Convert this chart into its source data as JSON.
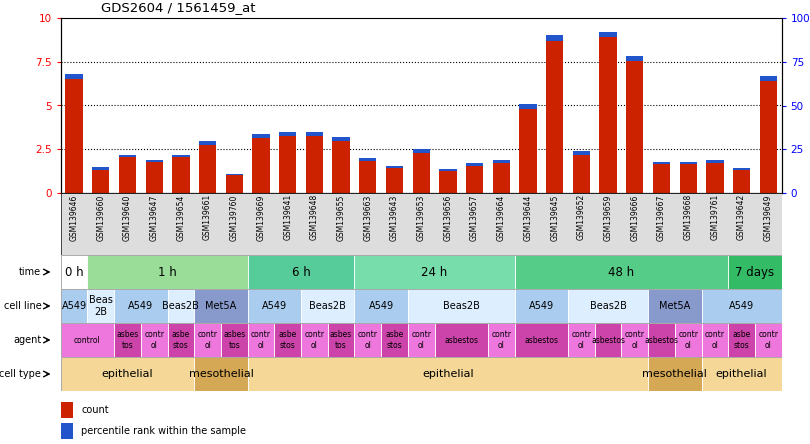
{
  "title": "GDS2604 / 1561459_at",
  "samples": [
    "GSM139646",
    "GSM139660",
    "GSM139640",
    "GSM139647",
    "GSM139654",
    "GSM139661",
    "GSM139760",
    "GSM139669",
    "GSM139641",
    "GSM139648",
    "GSM139655",
    "GSM139663",
    "GSM139643",
    "GSM139653",
    "GSM139656",
    "GSM139657",
    "GSM139664",
    "GSM139644",
    "GSM139645",
    "GSM139652",
    "GSM139659",
    "GSM139666",
    "GSM139667",
    "GSM139668",
    "GSM139761",
    "GSM139642",
    "GSM139649"
  ],
  "red_values": [
    6.8,
    1.5,
    2.2,
    1.9,
    2.2,
    3.0,
    1.1,
    3.35,
    3.5,
    3.5,
    3.2,
    2.0,
    1.55,
    2.5,
    1.4,
    1.7,
    1.9,
    5.1,
    9.0,
    2.4,
    9.2,
    7.8,
    1.8,
    1.8,
    1.9,
    1.45,
    6.7
  ],
  "blue_values": [
    0.3,
    0.18,
    0.17,
    0.14,
    0.17,
    0.25,
    0.08,
    0.22,
    0.22,
    0.24,
    0.22,
    0.17,
    0.13,
    0.2,
    0.12,
    0.14,
    0.16,
    0.3,
    0.3,
    0.2,
    0.28,
    0.27,
    0.17,
    0.17,
    0.18,
    0.14,
    0.28
  ],
  "ylim": [
    0,
    10
  ],
  "yticks": [
    0,
    2.5,
    5,
    7.5,
    10
  ],
  "right_ytick_labels": [
    "0",
    "25",
    "50",
    "75",
    "100%"
  ],
  "grid_lines": [
    2.5,
    5.0,
    7.5
  ],
  "bar_color_red": "#cc2200",
  "bar_color_blue": "#2255cc",
  "time_groups": [
    {
      "label": "0 h",
      "start": 0,
      "end": 1,
      "color": "#ffffff"
    },
    {
      "label": "1 h",
      "start": 1,
      "end": 7,
      "color": "#99dd99"
    },
    {
      "label": "6 h",
      "start": 7,
      "end": 11,
      "color": "#55cc99"
    },
    {
      "label": "24 h",
      "start": 11,
      "end": 17,
      "color": "#77ddaa"
    },
    {
      "label": "48 h",
      "start": 17,
      "end": 25,
      "color": "#55cc88"
    },
    {
      "label": "7 days",
      "start": 25,
      "end": 27,
      "color": "#33bb66"
    }
  ],
  "cell_line_groups": [
    {
      "label": "A549",
      "start": 0,
      "end": 1,
      "color": "#aaccee"
    },
    {
      "label": "Beas\n2B",
      "start": 1,
      "end": 2,
      "color": "#ddeeff"
    },
    {
      "label": "A549",
      "start": 2,
      "end": 4,
      "color": "#aaccee"
    },
    {
      "label": "Beas2B",
      "start": 4,
      "end": 5,
      "color": "#ddeeff"
    },
    {
      "label": "Met5A",
      "start": 5,
      "end": 7,
      "color": "#8899cc"
    },
    {
      "label": "A549",
      "start": 7,
      "end": 9,
      "color": "#aaccee"
    },
    {
      "label": "Beas2B",
      "start": 9,
      "end": 11,
      "color": "#ddeeff"
    },
    {
      "label": "A549",
      "start": 11,
      "end": 13,
      "color": "#aaccee"
    },
    {
      "label": "Beas2B",
      "start": 13,
      "end": 17,
      "color": "#ddeeff"
    },
    {
      "label": "A549",
      "start": 17,
      "end": 19,
      "color": "#aaccee"
    },
    {
      "label": "Beas2B",
      "start": 19,
      "end": 22,
      "color": "#ddeeff"
    },
    {
      "label": "Met5A",
      "start": 22,
      "end": 24,
      "color": "#8899cc"
    },
    {
      "label": "A549",
      "start": 24,
      "end": 27,
      "color": "#aaccee"
    }
  ],
  "agent_groups": [
    {
      "label": "control",
      "start": 0,
      "end": 2,
      "color": "#ee77dd"
    },
    {
      "label": "asbes\ntos",
      "start": 2,
      "end": 3,
      "color": "#cc44aa"
    },
    {
      "label": "contr\nol",
      "start": 3,
      "end": 4,
      "color": "#ee77dd"
    },
    {
      "label": "asbe\nstos",
      "start": 4,
      "end": 5,
      "color": "#cc44aa"
    },
    {
      "label": "contr\nol",
      "start": 5,
      "end": 6,
      "color": "#ee77dd"
    },
    {
      "label": "asbes\ntos",
      "start": 6,
      "end": 7,
      "color": "#cc44aa"
    },
    {
      "label": "contr\nol",
      "start": 7,
      "end": 8,
      "color": "#ee77dd"
    },
    {
      "label": "asbe\nstos",
      "start": 8,
      "end": 9,
      "color": "#cc44aa"
    },
    {
      "label": "contr\nol",
      "start": 9,
      "end": 10,
      "color": "#ee77dd"
    },
    {
      "label": "asbes\ntos",
      "start": 10,
      "end": 11,
      "color": "#cc44aa"
    },
    {
      "label": "contr\nol",
      "start": 11,
      "end": 12,
      "color": "#ee77dd"
    },
    {
      "label": "asbe\nstos",
      "start": 12,
      "end": 13,
      "color": "#cc44aa"
    },
    {
      "label": "contr\nol",
      "start": 13,
      "end": 14,
      "color": "#ee77dd"
    },
    {
      "label": "asbestos",
      "start": 14,
      "end": 16,
      "color": "#cc44aa"
    },
    {
      "label": "contr\nol",
      "start": 16,
      "end": 17,
      "color": "#ee77dd"
    },
    {
      "label": "asbestos",
      "start": 17,
      "end": 19,
      "color": "#cc44aa"
    },
    {
      "label": "contr\nol",
      "start": 19,
      "end": 20,
      "color": "#ee77dd"
    },
    {
      "label": "asbestos",
      "start": 20,
      "end": 21,
      "color": "#cc44aa"
    },
    {
      "label": "contr\nol",
      "start": 21,
      "end": 22,
      "color": "#ee77dd"
    },
    {
      "label": "asbestos",
      "start": 22,
      "end": 23,
      "color": "#cc44aa"
    },
    {
      "label": "contr\nol",
      "start": 23,
      "end": 24,
      "color": "#ee77dd"
    },
    {
      "label": "contr\nol",
      "start": 24,
      "end": 25,
      "color": "#ee77dd"
    },
    {
      "label": "asbe\nstos",
      "start": 25,
      "end": 26,
      "color": "#cc44aa"
    },
    {
      "label": "contr\nol",
      "start": 26,
      "end": 27,
      "color": "#ee77dd"
    }
  ],
  "cell_type_groups": [
    {
      "label": "epithelial",
      "start": 0,
      "end": 5,
      "color": "#f5d898"
    },
    {
      "label": "mesothelial",
      "start": 5,
      "end": 7,
      "color": "#d4a855"
    },
    {
      "label": "epithelial",
      "start": 7,
      "end": 22,
      "color": "#f5d898"
    },
    {
      "label": "mesothelial",
      "start": 22,
      "end": 24,
      "color": "#d4a855"
    },
    {
      "label": "epithelial",
      "start": 24,
      "end": 27,
      "color": "#f5d898"
    }
  ],
  "row_labels": [
    "time",
    "cell line",
    "agent",
    "cell type"
  ],
  "legend_items": [
    {
      "label": "count",
      "color": "#cc2200"
    },
    {
      "label": "percentile rank within the sample",
      "color": "#2255cc"
    }
  ],
  "bg_color": "#ffffff",
  "bar_area_bg": "#ffffff",
  "xlabel_bg": "#cccccc"
}
